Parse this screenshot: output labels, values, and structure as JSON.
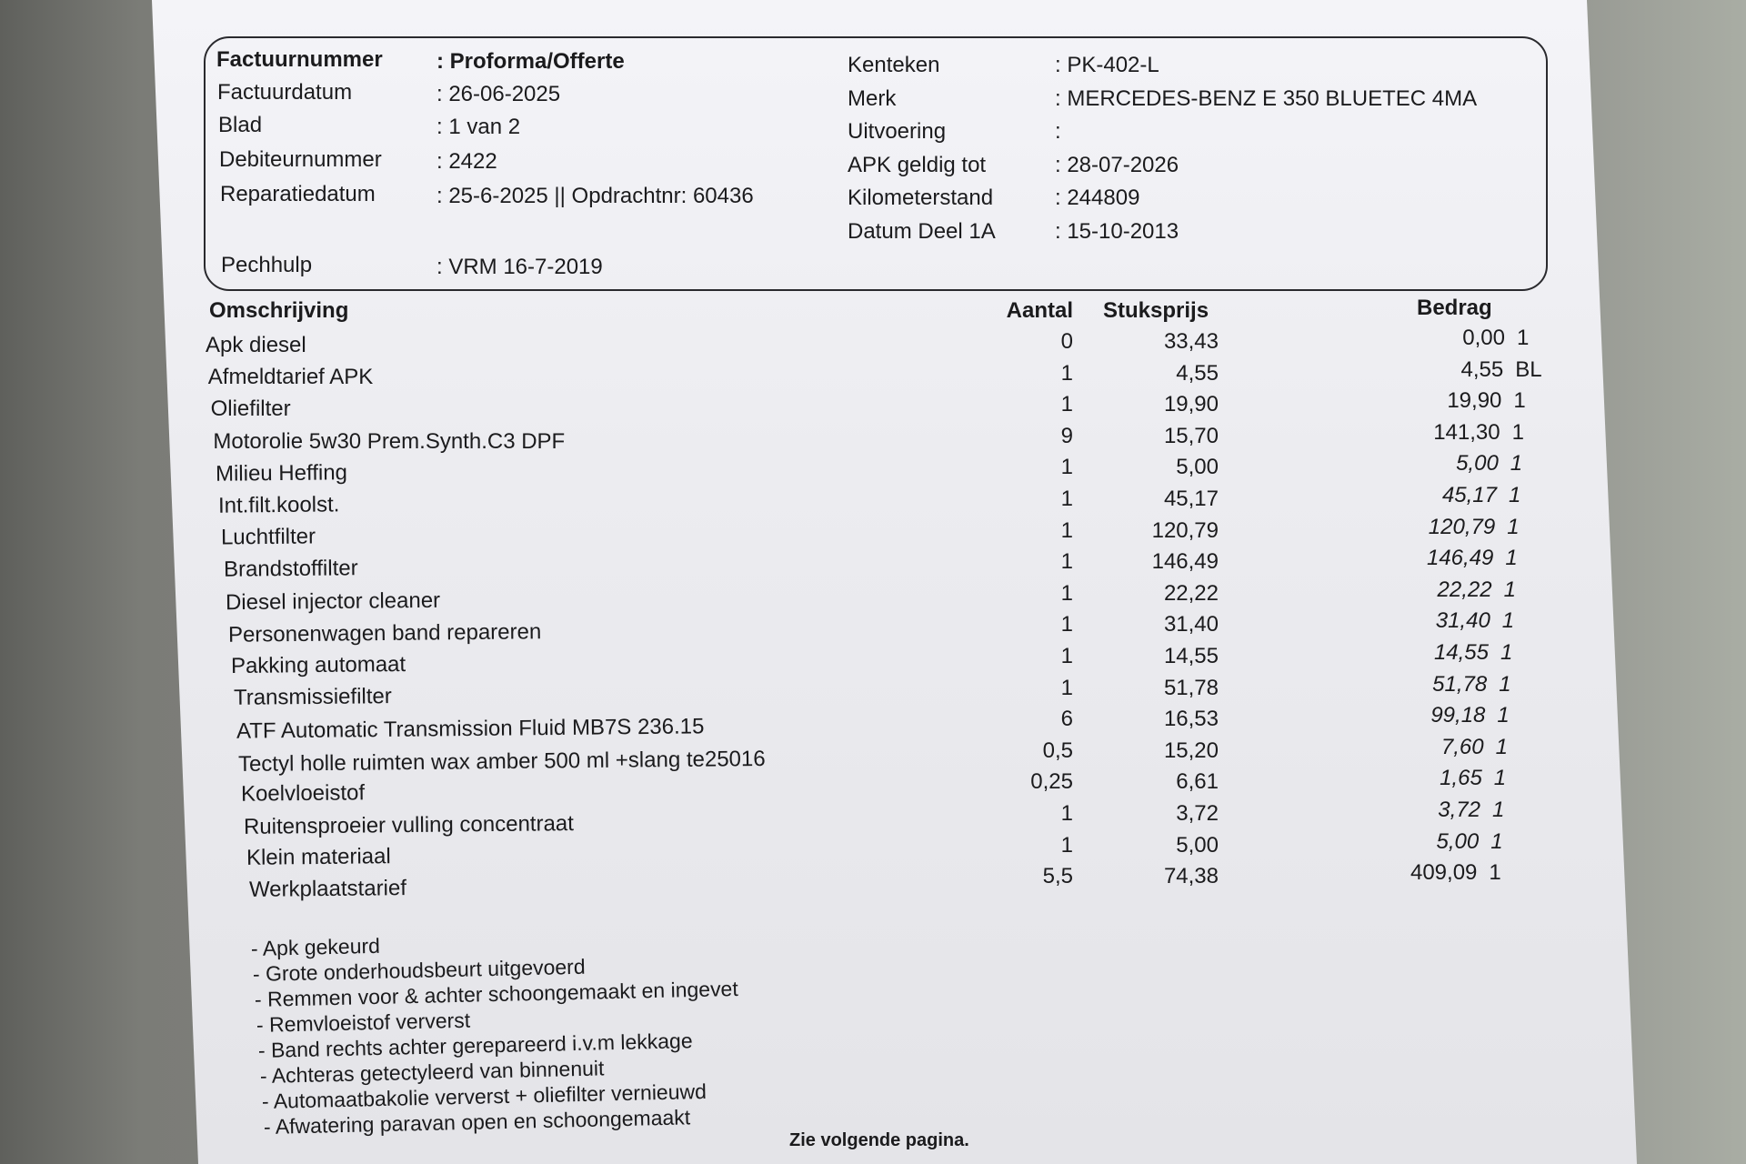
{
  "header_left": [
    {
      "label": "Factuurnummer",
      "value": ": Proforma/Offerte",
      "bold": true
    },
    {
      "label": "Factuurdatum",
      "value": ": 26-06-2025"
    },
    {
      "label": "Blad",
      "value": ": 1 van 2"
    },
    {
      "label": "Debiteurnummer",
      "value": ": 2422"
    },
    {
      "label": "Reparatiedatum",
      "value": ": 25-6-2025 || Opdrachtnr: 60436"
    },
    {
      "label": "Pechhulp",
      "value": ": VRM 16-7-2019"
    }
  ],
  "header_right": [
    {
      "label": "Kenteken",
      "value": ": PK-402-L"
    },
    {
      "label": "Merk",
      "value": ": MERCEDES-BENZ E 350 BLUETEC 4MA"
    },
    {
      "label": "Uitvoering",
      "value": ":"
    },
    {
      "label": "APK geldig tot",
      "value": ": 28-07-2026"
    },
    {
      "label": "Kilometerstand",
      "value": ": 244809"
    },
    {
      "label": "Datum Deel 1A",
      "value": ": 15-10-2013"
    }
  ],
  "columns": {
    "description": "Omschrijving",
    "quantity": "Aantal",
    "unit_price": "Stuksprijs",
    "amount": "Bedrag"
  },
  "rows": [
    {
      "description": "Apk diesel",
      "quantity": "0",
      "unit_price": "33,43",
      "amount": "0,00",
      "code": "1"
    },
    {
      "description": "Afmeldtarief APK",
      "quantity": "1",
      "unit_price": "4,55",
      "amount": "4,55",
      "code": "BL"
    },
    {
      "description": "Oliefilter",
      "quantity": "1",
      "unit_price": "19,90",
      "amount": "19,90",
      "code": "1"
    },
    {
      "description": "Motorolie 5w30 Prem.Synth.C3 DPF",
      "quantity": "9",
      "unit_price": "15,70",
      "amount": "141,30",
      "code": "1"
    },
    {
      "description": "Milieu Heffing",
      "quantity": "1",
      "unit_price": "5,00",
      "amount": "5,00",
      "code": "1"
    },
    {
      "description": "Int.filt.koolst.",
      "quantity": "1",
      "unit_price": "45,17",
      "amount": "45,17",
      "code": "1"
    },
    {
      "description": "Luchtfilter",
      "quantity": "1",
      "unit_price": "120,79",
      "amount": "120,79",
      "code": "1"
    },
    {
      "description": "Brandstoffilter",
      "quantity": "1",
      "unit_price": "146,49",
      "amount": "146,49",
      "code": "1"
    },
    {
      "description": "Diesel injector cleaner",
      "quantity": "1",
      "unit_price": "22,22",
      "amount": "22,22",
      "code": "1"
    },
    {
      "description": "Personenwagen band repareren",
      "quantity": "1",
      "unit_price": "31,40",
      "amount": "31,40",
      "code": "1"
    },
    {
      "description": "Pakking automaat",
      "quantity": "1",
      "unit_price": "14,55",
      "amount": "14,55",
      "code": "1"
    },
    {
      "description": "Transmissiefilter",
      "quantity": "1",
      "unit_price": "51,78",
      "amount": "51,78",
      "code": "1"
    },
    {
      "description": "ATF Automatic Transmission Fluid MB7S 236.15",
      "quantity": "6",
      "unit_price": "16,53",
      "amount": "99,18",
      "code": "1"
    },
    {
      "description": "Tectyl holle ruimten wax amber 500 ml +slang te25016",
      "quantity": "0,5",
      "unit_price": "15,20",
      "amount": "7,60",
      "code": "1"
    },
    {
      "description": "Koelvloeistof",
      "quantity": "0,25",
      "unit_price": "6,61",
      "amount": "1,65",
      "code": "1"
    },
    {
      "description": "Ruitensproeier vulling concentraat",
      "quantity": "1",
      "unit_price": "3,72",
      "amount": "3,72",
      "code": "1"
    },
    {
      "description": "Klein materiaal",
      "quantity": "1",
      "unit_price": "5,00",
      "amount": "5,00",
      "code": "1"
    },
    {
      "description": "Werkplaatstarief",
      "quantity": "5,5",
      "unit_price": "74,38",
      "amount": "409,09",
      "code": "1"
    }
  ],
  "notes": [
    "- Apk gekeurd",
    "- Grote onderhoudsbeurt uitgevoerd",
    "- Remmen voor & achter schoongemaakt en ingevet",
    "- Remvloeistof ververst",
    "- Band rechts achter gerepareerd i.v.m lekkage",
    "- Achteras getectyleerd van binnenuit",
    "- Automaatbakolie ververst + oliefilter vernieuwd",
    "- Afwatering paravan open en schoongemaakt"
  ],
  "footer": "Zie volgende pagina."
}
